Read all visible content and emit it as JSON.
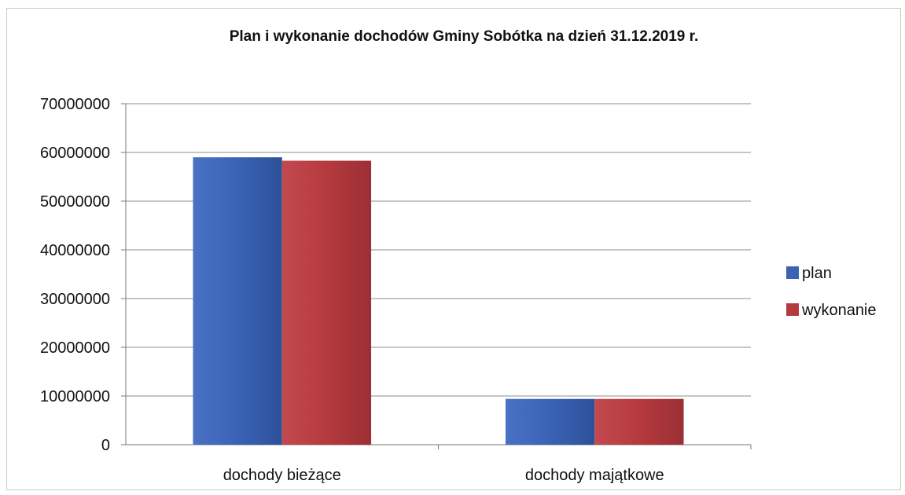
{
  "chart_data": {
    "type": "bar",
    "title": "Plan i wykonanie dochodów Gminy Sobótka na dzień 31.12.2019 r.",
    "xlabel": "",
    "ylabel": "",
    "ylim": [
      0,
      70000000
    ],
    "yticks": [
      "0",
      "10000000",
      "20000000",
      "30000000",
      "40000000",
      "50000000",
      "60000000",
      "70000000"
    ],
    "categories": [
      "dochody bieżące",
      "dochody majątkowe"
    ],
    "series": [
      {
        "name": "plan",
        "values": [
          59000000,
          9400000
        ],
        "color": "#3a62b5"
      },
      {
        "name": "wykonanie",
        "values": [
          58300000,
          9400000
        ],
        "color": "#b53a3f"
      }
    ],
    "grid": true,
    "legend": "right"
  }
}
